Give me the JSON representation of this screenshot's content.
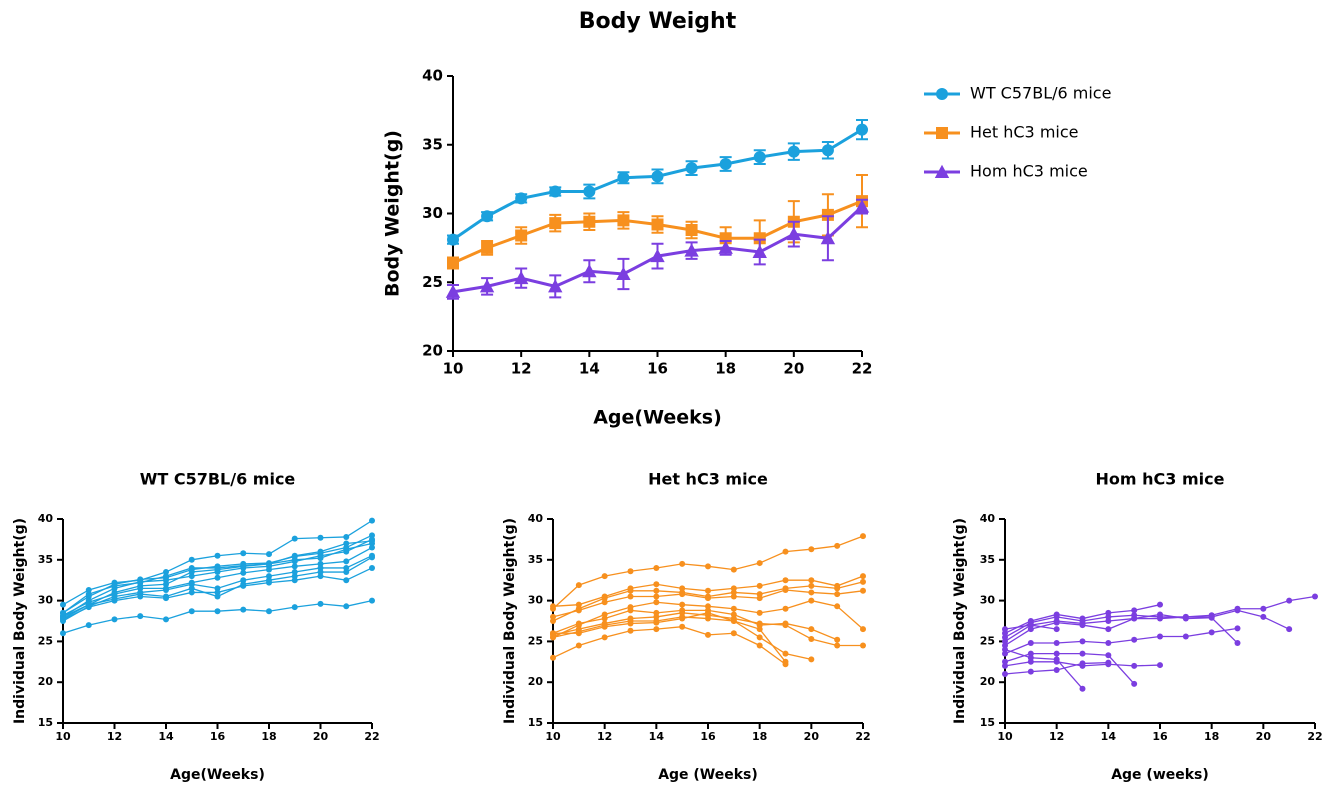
{
  "chart_data": [
    {
      "type": "line",
      "title": "Body Weight",
      "x_label": "Age(Weeks)",
      "y_label": "Body Weight(g)",
      "x": [
        10,
        11,
        12,
        13,
        14,
        15,
        16,
        17,
        18,
        19,
        20,
        21,
        22
      ],
      "xlim": [
        10,
        22
      ],
      "xticks": [
        10,
        12,
        14,
        16,
        18,
        20,
        22
      ],
      "ylim": [
        20,
        40
      ],
      "yticks": [
        20,
        25,
        30,
        35,
        40
      ],
      "legend": "right",
      "series": [
        {
          "name": "WT C57BL/6 mice",
          "color": "#1ba1dd",
          "marker": "circle",
          "values": [
            28.1,
            29.8,
            31.1,
            31.6,
            31.6,
            32.6,
            32.7,
            33.3,
            33.6,
            34.1,
            34.5,
            34.6,
            36.1
          ],
          "errors": [
            0.3,
            0.3,
            0.3,
            0.3,
            0.5,
            0.4,
            0.5,
            0.5,
            0.5,
            0.5,
            0.6,
            0.6,
            0.7
          ]
        },
        {
          "name": "Het hC3 mice",
          "color": "#f7901e",
          "marker": "square",
          "values": [
            26.4,
            27.5,
            28.4,
            29.3,
            29.4,
            29.5,
            29.2,
            28.8,
            28.2,
            28.2,
            29.4,
            29.9,
            30.9
          ],
          "errors": [
            0.4,
            0.5,
            0.6,
            0.6,
            0.6,
            0.6,
            0.6,
            0.6,
            0.8,
            1.3,
            1.5,
            1.5,
            1.9
          ]
        },
        {
          "name": "Hom hC3 mice",
          "color": "#7b3ee0",
          "marker": "triangle",
          "values": [
            24.3,
            24.7,
            25.3,
            24.7,
            25.8,
            25.6,
            26.9,
            27.3,
            27.5,
            27.2,
            28.5,
            28.2,
            30.5
          ],
          "errors": [
            0.5,
            0.6,
            0.7,
            0.8,
            0.8,
            1.1,
            0.9,
            0.6,
            0.5,
            0.9,
            0.9,
            1.6,
            0.5
          ]
        }
      ]
    },
    {
      "type": "line",
      "title": "WT C57BL/6 mice",
      "x_label": "Age(Weeks)",
      "y_label": "Individual Body Weight(g)",
      "x": [
        10,
        11,
        12,
        13,
        14,
        15,
        16,
        17,
        18,
        19,
        20,
        21,
        22
      ],
      "xlim": [
        10,
        22
      ],
      "xticks": [
        10,
        12,
        14,
        16,
        18,
        20,
        22
      ],
      "ylim": [
        15,
        40
      ],
      "yticks": [
        15,
        20,
        25,
        30,
        35,
        40
      ],
      "color": "#1ba1dd",
      "series": [
        {
          "values": [
            29.5,
            31.3,
            32.2,
            32.5,
            33.5,
            35.0,
            35.5,
            35.8,
            35.7,
            37.6,
            37.7,
            37.8,
            39.8
          ]
        },
        {
          "values": [
            28.5,
            30.5,
            32.0,
            32.6,
            32.8,
            33.8,
            34.2,
            34.5,
            34.6,
            35.4,
            35.8,
            36.5,
            38.0
          ]
        },
        {
          "values": [
            28.0,
            30.0,
            31.5,
            32.3,
            32.5,
            33.0,
            33.5,
            34.0,
            34.2,
            34.8,
            35.5,
            36.0,
            37.5
          ]
        },
        {
          "values": [
            27.8,
            29.5,
            31.0,
            31.8,
            32.0,
            33.5,
            33.8,
            34.2,
            34.5,
            35.0,
            35.2,
            36.3,
            37.0
          ]
        },
        {
          "values": [
            28.2,
            29.8,
            30.8,
            31.5,
            31.5,
            32.2,
            32.8,
            33.4,
            33.8,
            34.2,
            34.5,
            34.8,
            36.5
          ]
        },
        {
          "values": [
            27.5,
            29.3,
            30.5,
            31.0,
            31.3,
            32.0,
            31.5,
            32.5,
            33.0,
            33.5,
            34.0,
            34.0,
            35.5
          ]
        },
        {
          "values": [
            28.0,
            29.5,
            30.2,
            30.8,
            30.5,
            31.5,
            30.5,
            32.0,
            32.5,
            33.0,
            33.5,
            33.5,
            35.3
          ]
        },
        {
          "values": [
            27.7,
            29.2,
            30.0,
            30.5,
            30.3,
            31.0,
            31.0,
            31.8,
            32.2,
            32.5,
            33.0,
            32.5,
            34.0
          ]
        },
        {
          "values": [
            28.5,
            30.8,
            31.8,
            32.2,
            33.0,
            34.0,
            34.0,
            34.3,
            34.5,
            35.5,
            36.0,
            37.0,
            37.3
          ]
        },
        {
          "values": [
            26.0,
            27.0,
            27.7,
            28.1,
            27.7,
            28.7,
            28.7,
            28.9,
            28.7,
            29.2,
            29.6,
            29.3,
            30.0
          ]
        }
      ]
    },
    {
      "type": "line",
      "title": "Het hC3 mice",
      "x_label": "Age (Weeks)",
      "y_label": "Individual Body Weight(g)",
      "x": [
        10,
        11,
        12,
        13,
        14,
        15,
        16,
        17,
        18,
        19,
        20,
        21,
        22
      ],
      "xlim": [
        10,
        22
      ],
      "xticks": [
        10,
        12,
        14,
        16,
        18,
        20,
        22
      ],
      "ylim": [
        15,
        40
      ],
      "yticks": [
        15,
        20,
        25,
        30,
        35,
        40
      ],
      "color": "#f7901e",
      "series": [
        {
          "values": [
            29.0,
            31.9,
            33.0,
            33.6,
            34.0,
            34.5,
            34.2,
            33.8,
            34.6,
            36.0,
            36.3,
            36.7,
            37.9
          ]
        },
        {
          "values": [
            29.3,
            29.5,
            30.5,
            31.5,
            32.0,
            31.5,
            31.2,
            31.5,
            31.8,
            32.5,
            32.5,
            31.8,
            33.0
          ]
        },
        {
          "values": [
            27.5,
            29.0,
            30.3,
            31.2,
            31.2,
            31.0,
            30.5,
            31.0,
            30.8,
            31.5,
            31.8,
            31.5,
            32.3
          ]
        },
        {
          "values": [
            28.0,
            28.8,
            29.8,
            30.5,
            30.5,
            30.8,
            30.3,
            30.5,
            30.3,
            31.3,
            31.0,
            30.8,
            31.2
          ]
        },
        {
          "values": [
            25.5,
            27.0,
            28.3,
            29.2,
            29.8,
            29.5,
            29.3,
            29.0,
            28.5,
            29.0,
            30.0,
            29.3,
            26.5
          ]
        },
        {
          "values": [
            26.0,
            27.2,
            27.8,
            28.8,
            28.5,
            28.8,
            28.8,
            28.3,
            27.0,
            27.2,
            26.5,
            25.2,
            null
          ]
        },
        {
          "values": [
            25.8,
            26.5,
            27.2,
            27.8,
            28.0,
            28.5,
            28.2,
            27.8,
            27.2,
            27.0,
            25.3,
            24.5,
            24.5
          ]
        },
        {
          "values": [
            25.5,
            26.2,
            27.0,
            27.5,
            27.5,
            28.0,
            27.8,
            27.5,
            25.5,
            23.5,
            22.8,
            null,
            null
          ]
        },
        {
          "values": [
            23.0,
            24.5,
            25.5,
            26.3,
            26.5,
            26.8,
            25.8,
            26.0,
            24.5,
            22.2,
            null,
            null,
            null
          ]
        },
        {
          "values": [
            26.0,
            26.0,
            26.8,
            27.2,
            27.3,
            27.8,
            28.5,
            27.5,
            26.5,
            22.5,
            null,
            null,
            null
          ]
        }
      ]
    },
    {
      "type": "line",
      "title": "Hom hC3 mice",
      "x_label": "Age (weeks)",
      "y_label": "Individual Body Weight(g)",
      "x": [
        10,
        11,
        12,
        13,
        14,
        15,
        16,
        17,
        18,
        19,
        20,
        21,
        22
      ],
      "xlim": [
        10,
        22
      ],
      "xticks": [
        10,
        12,
        14,
        16,
        18,
        20,
        22
      ],
      "ylim": [
        15,
        40
      ],
      "yticks": [
        15,
        20,
        25,
        30,
        35,
        40
      ],
      "color": "#7b3ee0",
      "series": [
        {
          "values": [
            26.0,
            27.5,
            28.3,
            27.8,
            28.5,
            28.8,
            29.5,
            null,
            null,
            null,
            null,
            null,
            null
          ]
        },
        {
          "values": [
            25.5,
            27.3,
            28.0,
            27.5,
            28.0,
            28.2,
            28.0,
            28.0,
            28.2,
            29.0,
            29.0,
            30.0,
            30.5
          ]
        },
        {
          "values": [
            25.0,
            27.0,
            27.5,
            27.2,
            27.5,
            27.8,
            27.8,
            28.0,
            28.0,
            28.8,
            28.0,
            26.5,
            null
          ]
        },
        {
          "values": [
            24.5,
            26.5,
            27.3,
            27.0,
            26.5,
            27.8,
            28.3,
            27.8,
            27.9,
            24.8,
            null,
            null,
            null
          ]
        },
        {
          "values": [
            23.5,
            24.8,
            24.8,
            25.0,
            24.8,
            25.2,
            25.6,
            25.6,
            26.1,
            26.6,
            null,
            null,
            null
          ]
        },
        {
          "values": [
            22.5,
            23.5,
            23.5,
            23.5,
            23.3,
            19.8,
            null,
            null,
            null,
            null,
            null,
            null,
            null
          ]
        },
        {
          "values": [
            22.0,
            22.5,
            22.5,
            22.0,
            22.2,
            22.0,
            22.1,
            null,
            null,
            null,
            null,
            null,
            null
          ]
        },
        {
          "values": [
            21.0,
            21.3,
            21.5,
            22.3,
            22.4,
            null,
            null,
            null,
            null,
            null,
            null,
            null,
            null
          ]
        },
        {
          "values": [
            24.0,
            23.0,
            22.8,
            19.2,
            null,
            null,
            null,
            null,
            null,
            null,
            null,
            null,
            null
          ]
        },
        {
          "values": [
            26.5,
            27.0,
            26.5,
            null,
            null,
            null,
            null,
            null,
            null,
            null,
            null,
            null,
            null
          ]
        }
      ]
    }
  ]
}
